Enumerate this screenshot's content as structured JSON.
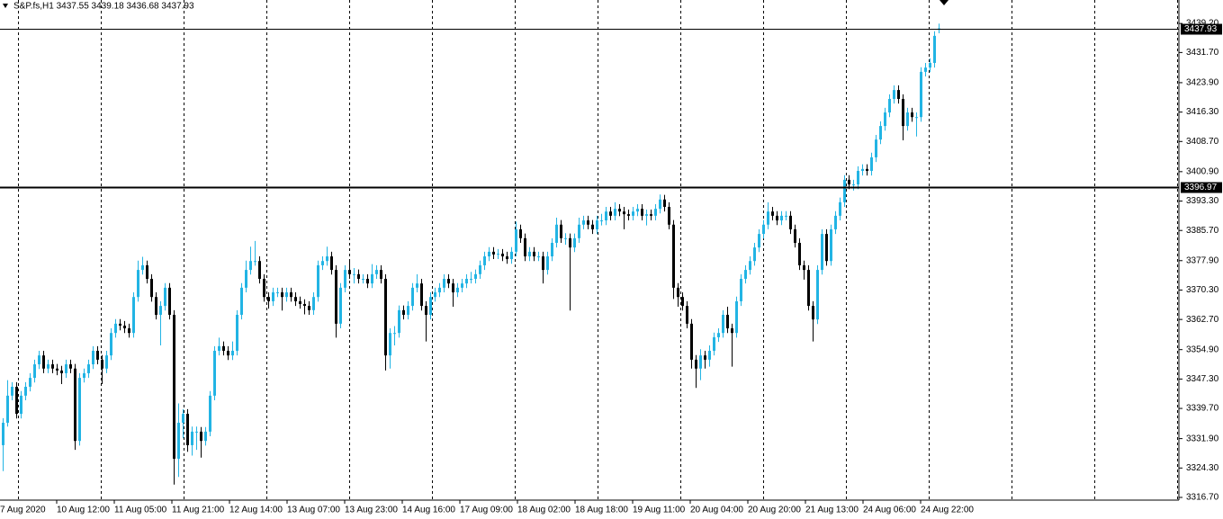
{
  "chart_data": {
    "type": "candlestick",
    "title": "S&P.fs,H1  3437.55 3439.18 3436.68 3437.93",
    "up_color": "#22b4e4",
    "down_color": "#000000",
    "ylim": [
      3316.7,
      3445.27
    ],
    "yticks": [
      {
        "value": 3439.2,
        "label": "3439.20"
      },
      {
        "value": 3431.7,
        "label": "3431.70"
      },
      {
        "value": 3423.9,
        "label": "3423.90"
      },
      {
        "value": 3416.3,
        "label": "3416.30"
      },
      {
        "value": 3408.7,
        "label": "3408.70"
      },
      {
        "value": 3400.9,
        "label": "3400.90"
      },
      {
        "value": 3393.3,
        "label": "3393.30"
      },
      {
        "value": 3385.7,
        "label": "3385.70"
      },
      {
        "value": 3377.9,
        "label": "3377.90"
      },
      {
        "value": 3370.3,
        "label": "3370.30"
      },
      {
        "value": 3362.7,
        "label": "3362.70"
      },
      {
        "value": 3354.9,
        "label": "3354.90"
      },
      {
        "value": 3347.3,
        "label": "3347.30"
      },
      {
        "value": 3339.7,
        "label": "3339.70"
      },
      {
        "value": 3331.9,
        "label": "3331.90"
      },
      {
        "value": 3324.3,
        "label": "3324.30"
      },
      {
        "value": 3316.7,
        "label": "3316.70"
      }
    ],
    "price_lines": [
      3437.93,
      3396.97
    ],
    "x_labels": [
      "7 Aug 2020",
      "10 Aug 12:00",
      "11 Aug 05:00",
      "11 Aug 21:00",
      "12 Aug 14:00",
      "13 Aug 07:00",
      "13 Aug 23:00",
      "14 Aug 16:00",
      "17 Aug 09:00",
      "18 Aug 02:00",
      "18 Aug 18:00",
      "19 Aug 11:00",
      "20 Aug 04:00",
      "20 Aug 20:00",
      "21 Aug 13:00",
      "24 Aug 06:00",
      "24 Aug 22:00"
    ],
    "candles": [
      [
        3330.2,
        3337.2,
        3323.5,
        3336.0
      ],
      [
        3336.0,
        3347.0,
        3335.0,
        3343.0
      ],
      [
        3343.0,
        3346.5,
        3341.8,
        3345.3
      ],
      [
        3345.3,
        3346.5,
        3337.1,
        3338.3
      ],
      [
        3338.3,
        3344.2,
        3337.1,
        3343.0
      ],
      [
        3343.0,
        3346.5,
        3341.8,
        3345.3
      ],
      [
        3345.3,
        3348.8,
        3344.1,
        3347.6
      ],
      [
        3347.6,
        3352.3,
        3346.4,
        3351.1
      ],
      [
        3351.1,
        3354.6,
        3349.9,
        3353.4
      ],
      [
        3353.4,
        3354.6,
        3348.8,
        3350.0
      ],
      [
        3350.0,
        3352.3,
        3348.8,
        3351.1
      ],
      [
        3351.1,
        3352.3,
        3348.8,
        3350.0
      ],
      [
        3350.0,
        3351.2,
        3348.3,
        3349.5
      ],
      [
        3349.5,
        3350.7,
        3346.0,
        3348.8
      ],
      [
        3348.8,
        3352.3,
        3347.6,
        3351.1
      ],
      [
        3351.1,
        3352.3,
        3348.8,
        3350.0
      ],
      [
        3350.0,
        3351.2,
        3329.0,
        3331.3
      ],
      [
        3331.3,
        3348.8,
        3330.1,
        3347.6
      ],
      [
        3347.6,
        3350.0,
        3346.4,
        3348.8
      ],
      [
        3348.8,
        3352.3,
        3347.6,
        3351.1
      ],
      [
        3351.1,
        3355.8,
        3349.9,
        3354.6
      ],
      [
        3354.6,
        3355.8,
        3351.1,
        3352.3
      ],
      [
        3352.3,
        3353.5,
        3346.0,
        3350.0
      ],
      [
        3350.0,
        3354.6,
        3348.8,
        3353.4
      ],
      [
        3353.4,
        3360.4,
        3352.2,
        3359.2
      ],
      [
        3359.2,
        3362.8,
        3358.0,
        3361.6
      ],
      [
        3361.6,
        3362.8,
        3359.9,
        3361.1
      ],
      [
        3361.1,
        3362.3,
        3359.2,
        3360.4
      ],
      [
        3360.4,
        3361.6,
        3358.0,
        3359.2
      ],
      [
        3359.2,
        3369.7,
        3358.0,
        3368.5
      ],
      [
        3368.5,
        3377.9,
        3367.3,
        3375.5
      ],
      [
        3375.5,
        3378.9,
        3374.3,
        3376.7
      ],
      [
        3376.7,
        3377.9,
        3372.0,
        3373.2
      ],
      [
        3373.2,
        3374.4,
        3367.3,
        3368.5
      ],
      [
        3368.5,
        3369.7,
        3362.7,
        3363.9
      ],
      [
        3363.9,
        3367.4,
        3356.0,
        3366.2
      ],
      [
        3366.2,
        3372.1,
        3365.0,
        3370.9
      ],
      [
        3370.9,
        3372.1,
        3362.7,
        3363.9
      ],
      [
        3363.9,
        3365.1,
        3320.0,
        3326.7
      ],
      [
        3326.7,
        3341.0,
        3322.0,
        3336.0
      ],
      [
        3336.0,
        3339.5,
        3332.0,
        3338.3
      ],
      [
        3338.3,
        3339.5,
        3328.5,
        3330.2
      ],
      [
        3330.2,
        3335.0,
        3327.5,
        3333.7
      ],
      [
        3333.7,
        3335.0,
        3329.0,
        3333.7
      ],
      [
        3333.7,
        3334.9,
        3327.0,
        3331.3
      ],
      [
        3331.3,
        3334.9,
        3330.1,
        3333.7
      ],
      [
        3333.7,
        3344.2,
        3332.5,
        3343.0
      ],
      [
        3343.0,
        3355.8,
        3341.8,
        3354.6
      ],
      [
        3354.6,
        3358.0,
        3353.4,
        3355.8
      ],
      [
        3355.8,
        3357.0,
        3353.4,
        3354.6
      ],
      [
        3354.6,
        3355.8,
        3352.2,
        3353.4
      ],
      [
        3353.4,
        3357.0,
        3352.2,
        3354.6
      ],
      [
        3354.6,
        3365.1,
        3353.4,
        3363.9
      ],
      [
        3363.9,
        3372.1,
        3362.7,
        3370.9
      ],
      [
        3370.9,
        3377.9,
        3369.7,
        3375.5
      ],
      [
        3375.5,
        3381.5,
        3374.3,
        3377.8
      ],
      [
        3377.8,
        3383.0,
        3376.6,
        3377.8
      ],
      [
        3377.8,
        3379.0,
        3372.0,
        3373.2
      ],
      [
        3373.2,
        3374.4,
        3367.3,
        3368.5
      ],
      [
        3368.5,
        3369.7,
        3365.5,
        3367.4
      ],
      [
        3367.4,
        3370.9,
        3366.2,
        3369.7
      ],
      [
        3369.7,
        3370.9,
        3368.5,
        3369.7
      ],
      [
        3369.7,
        3370.9,
        3365.0,
        3368.5
      ],
      [
        3368.5,
        3370.9,
        3367.3,
        3369.7
      ],
      [
        3369.7,
        3370.9,
        3367.3,
        3368.5
      ],
      [
        3368.5,
        3369.7,
        3366.2,
        3367.4
      ],
      [
        3367.4,
        3368.6,
        3365.5,
        3366.7
      ],
      [
        3366.7,
        3367.9,
        3364.0,
        3366.2
      ],
      [
        3366.2,
        3367.4,
        3363.9,
        3365.1
      ],
      [
        3365.1,
        3369.7,
        3363.9,
        3368.5
      ],
      [
        3368.5,
        3377.9,
        3367.3,
        3376.7
      ],
      [
        3376.7,
        3379.0,
        3375.5,
        3377.8
      ],
      [
        3377.8,
        3381.5,
        3376.6,
        3379.0
      ],
      [
        3379.0,
        3380.2,
        3374.3,
        3375.5
      ],
      [
        3375.5,
        3376.7,
        3358.0,
        3361.6
      ],
      [
        3361.6,
        3372.1,
        3360.4,
        3370.9
      ],
      [
        3370.9,
        3376.7,
        3369.7,
        3375.5
      ],
      [
        3375.5,
        3378.0,
        3373.2,
        3374.4
      ],
      [
        3374.4,
        3376.0,
        3372.0,
        3374.4
      ],
      [
        3374.4,
        3375.6,
        3372.0,
        3373.2
      ],
      [
        3373.2,
        3374.4,
        3372.0,
        3373.2
      ],
      [
        3373.2,
        3374.4,
        3370.8,
        3372.0
      ],
      [
        3372.0,
        3377.0,
        3370.8,
        3374.4
      ],
      [
        3374.4,
        3376.7,
        3373.2,
        3375.5
      ],
      [
        3375.5,
        3376.7,
        3372.0,
        3373.2
      ],
      [
        3373.2,
        3374.4,
        3349.5,
        3353.4
      ],
      [
        3353.4,
        3360.4,
        3350.0,
        3359.2
      ],
      [
        3359.2,
        3361.0,
        3356.0,
        3359.2
      ],
      [
        3359.2,
        3366.3,
        3358.0,
        3365.1
      ],
      [
        3365.1,
        3366.3,
        3362.7,
        3363.9
      ],
      [
        3363.9,
        3367.4,
        3362.7,
        3366.2
      ],
      [
        3366.2,
        3372.1,
        3365.0,
        3370.9
      ],
      [
        3370.9,
        3374.4,
        3369.7,
        3372.0
      ],
      [
        3372.0,
        3373.2,
        3365.0,
        3366.2
      ],
      [
        3366.2,
        3367.4,
        3357.0,
        3363.9
      ],
      [
        3363.9,
        3369.7,
        3362.7,
        3368.5
      ],
      [
        3368.5,
        3370.9,
        3367.3,
        3369.7
      ],
      [
        3369.7,
        3372.1,
        3368.5,
        3370.9
      ],
      [
        3370.9,
        3374.4,
        3369.7,
        3373.2
      ],
      [
        3373.2,
        3374.4,
        3370.8,
        3372.0
      ],
      [
        3372.0,
        3373.2,
        3366.0,
        3369.7
      ],
      [
        3369.7,
        3372.1,
        3368.5,
        3370.9
      ],
      [
        3370.9,
        3373.2,
        3369.7,
        3372.0
      ],
      [
        3372.0,
        3374.4,
        3370.8,
        3373.2
      ],
      [
        3373.2,
        3375.0,
        3372.0,
        3373.2
      ],
      [
        3373.2,
        3375.6,
        3372.0,
        3374.4
      ],
      [
        3374.4,
        3377.9,
        3373.2,
        3376.7
      ],
      [
        3376.7,
        3380.2,
        3375.5,
        3379.0
      ],
      [
        3379.0,
        3381.4,
        3377.8,
        3380.2
      ],
      [
        3380.2,
        3381.4,
        3378.3,
        3379.5
      ],
      [
        3379.5,
        3380.9,
        3378.3,
        3379.7
      ],
      [
        3379.7,
        3380.9,
        3377.8,
        3379.0
      ],
      [
        3379.0,
        3380.2,
        3377.1,
        3378.3
      ],
      [
        3378.3,
        3381.4,
        3377.1,
        3380.2
      ],
      [
        3380.2,
        3388.0,
        3379.0,
        3386.0
      ],
      [
        3386.0,
        3387.2,
        3382.5,
        3383.7
      ],
      [
        3383.7,
        3384.9,
        3377.8,
        3379.0
      ],
      [
        3379.0,
        3381.4,
        3377.8,
        3380.2
      ],
      [
        3380.2,
        3381.4,
        3377.8,
        3379.0
      ],
      [
        3379.0,
        3380.2,
        3377.8,
        3379.0
      ],
      [
        3379.0,
        3380.2,
        3372.0,
        3375.5
      ],
      [
        3375.5,
        3380.2,
        3374.3,
        3379.0
      ],
      [
        3379.0,
        3383.7,
        3377.8,
        3382.5
      ],
      [
        3382.5,
        3389.0,
        3381.3,
        3387.2
      ],
      [
        3387.2,
        3388.4,
        3382.5,
        3383.7
      ],
      [
        3383.7,
        3385.0,
        3382.0,
        3383.7
      ],
      [
        3383.7,
        3384.9,
        3365.0,
        3381.3
      ],
      [
        3381.3,
        3384.9,
        3380.1,
        3383.7
      ],
      [
        3383.7,
        3389.0,
        3382.5,
        3387.2
      ],
      [
        3387.2,
        3389.5,
        3386.0,
        3388.3
      ],
      [
        3388.3,
        3389.5,
        3386.0,
        3387.2
      ],
      [
        3387.2,
        3388.4,
        3384.8,
        3386.0
      ],
      [
        3386.0,
        3389.5,
        3384.8,
        3388.3
      ],
      [
        3388.3,
        3390.0,
        3387.0,
        3388.3
      ],
      [
        3388.3,
        3391.8,
        3387.1,
        3390.6
      ],
      [
        3390.6,
        3391.8,
        3388.3,
        3389.5
      ],
      [
        3389.5,
        3393.0,
        3388.3,
        3391.3
      ],
      [
        3391.3,
        3392.5,
        3389.4,
        3390.6
      ],
      [
        3390.6,
        3391.8,
        3386.0,
        3389.9
      ],
      [
        3389.9,
        3391.1,
        3388.3,
        3389.5
      ],
      [
        3389.5,
        3391.8,
        3388.3,
        3390.6
      ],
      [
        3390.6,
        3392.5,
        3389.4,
        3391.3
      ],
      [
        3391.3,
        3392.5,
        3388.3,
        3389.5
      ],
      [
        3389.5,
        3391.1,
        3387.0,
        3389.9
      ],
      [
        3389.9,
        3391.1,
        3388.3,
        3389.5
      ],
      [
        3389.5,
        3392.5,
        3388.3,
        3391.3
      ],
      [
        3391.3,
        3395.0,
        3390.1,
        3393.7
      ],
      [
        3393.7,
        3394.9,
        3390.6,
        3391.8
      ],
      [
        3391.8,
        3393.0,
        3386.0,
        3387.2
      ],
      [
        3387.2,
        3388.4,
        3368.0,
        3370.9
      ],
      [
        3370.9,
        3372.1,
        3366.0,
        3368.5
      ],
      [
        3368.5,
        3369.7,
        3365.0,
        3366.2
      ],
      [
        3366.2,
        3367.4,
        3360.4,
        3361.6
      ],
      [
        3361.6,
        3362.8,
        3350.0,
        3352.3
      ],
      [
        3352.3,
        3353.5,
        3345.0,
        3350.0
      ],
      [
        3350.0,
        3355.0,
        3347.0,
        3353.4
      ],
      [
        3353.4,
        3354.6,
        3350.0,
        3352.3
      ],
      [
        3352.3,
        3356.0,
        3350.5,
        3354.6
      ],
      [
        3354.6,
        3359.3,
        3353.4,
        3358.1
      ],
      [
        3358.1,
        3360.4,
        3356.9,
        3359.2
      ],
      [
        3359.2,
        3365.1,
        3358.0,
        3363.9
      ],
      [
        3363.9,
        3366.0,
        3359.2,
        3360.4
      ],
      [
        3360.4,
        3361.6,
        3350.5,
        3359.2
      ],
      [
        3359.2,
        3368.6,
        3358.0,
        3367.4
      ],
      [
        3367.4,
        3374.4,
        3366.2,
        3373.2
      ],
      [
        3373.2,
        3376.7,
        3372.0,
        3375.5
      ],
      [
        3375.5,
        3379.0,
        3374.3,
        3377.8
      ],
      [
        3377.8,
        3382.5,
        3376.6,
        3381.3
      ],
      [
        3381.3,
        3386.0,
        3380.1,
        3384.8
      ],
      [
        3384.8,
        3388.4,
        3383.6,
        3387.2
      ],
      [
        3387.2,
        3393.0,
        3386.0,
        3390.6
      ],
      [
        3390.6,
        3391.8,
        3388.3,
        3389.5
      ],
      [
        3389.5,
        3390.7,
        3387.1,
        3388.3
      ],
      [
        3388.3,
        3390.7,
        3387.1,
        3389.5
      ],
      [
        3389.5,
        3390.7,
        3388.3,
        3389.5
      ],
      [
        3389.5,
        3390.7,
        3384.8,
        3386.0
      ],
      [
        3386.0,
        3387.2,
        3381.3,
        3382.5
      ],
      [
        3382.5,
        3383.7,
        3375.5,
        3376.7
      ],
      [
        3376.7,
        3377.9,
        3373.0,
        3375.5
      ],
      [
        3375.5,
        3376.7,
        3365.0,
        3366.2
      ],
      [
        3366.2,
        3367.4,
        3357.0,
        3362.7
      ],
      [
        3362.7,
        3376.7,
        3361.5,
        3375.5
      ],
      [
        3375.5,
        3386.0,
        3374.3,
        3384.8
      ],
      [
        3384.8,
        3386.0,
        3376.6,
        3377.8
      ],
      [
        3377.8,
        3387.2,
        3376.6,
        3386.0
      ],
      [
        3386.0,
        3390.7,
        3384.8,
        3389.5
      ],
      [
        3389.5,
        3394.2,
        3388.3,
        3393.0
      ],
      [
        3393.0,
        3400.0,
        3391.8,
        3398.8
      ],
      [
        3398.8,
        3400.0,
        3396.4,
        3397.6
      ],
      [
        3397.6,
        3398.8,
        3396.0,
        3397.6
      ],
      [
        3397.6,
        3402.3,
        3396.4,
        3401.1
      ],
      [
        3401.1,
        3402.8,
        3399.9,
        3401.6
      ],
      [
        3401.6,
        3402.8,
        3399.9,
        3401.1
      ],
      [
        3401.1,
        3405.8,
        3399.9,
        3404.6
      ],
      [
        3404.6,
        3410.4,
        3403.4,
        3409.2
      ],
      [
        3409.2,
        3413.9,
        3408.0,
        3412.7
      ],
      [
        3412.7,
        3417.4,
        3411.5,
        3416.2
      ],
      [
        3416.2,
        3420.9,
        3415.0,
        3419.7
      ],
      [
        3419.7,
        3423.2,
        3418.5,
        3422.0
      ],
      [
        3422.0,
        3423.2,
        3418.5,
        3419.7
      ],
      [
        3419.7,
        3420.9,
        3409.0,
        3412.7
      ],
      [
        3412.7,
        3417.4,
        3411.5,
        3416.2
      ],
      [
        3416.2,
        3417.4,
        3413.8,
        3415.0
      ],
      [
        3415.0,
        3416.2,
        3410.0,
        3415.0
      ],
      [
        3415.0,
        3427.9,
        3413.8,
        3426.7
      ],
      [
        3426.7,
        3429.0,
        3425.5,
        3427.8
      ],
      [
        3427.8,
        3430.2,
        3426.6,
        3429.0
      ],
      [
        3429.0,
        3437.2,
        3427.8,
        3436.0
      ],
      [
        3437.55,
        3439.18,
        3436.68,
        3437.93
      ]
    ]
  }
}
